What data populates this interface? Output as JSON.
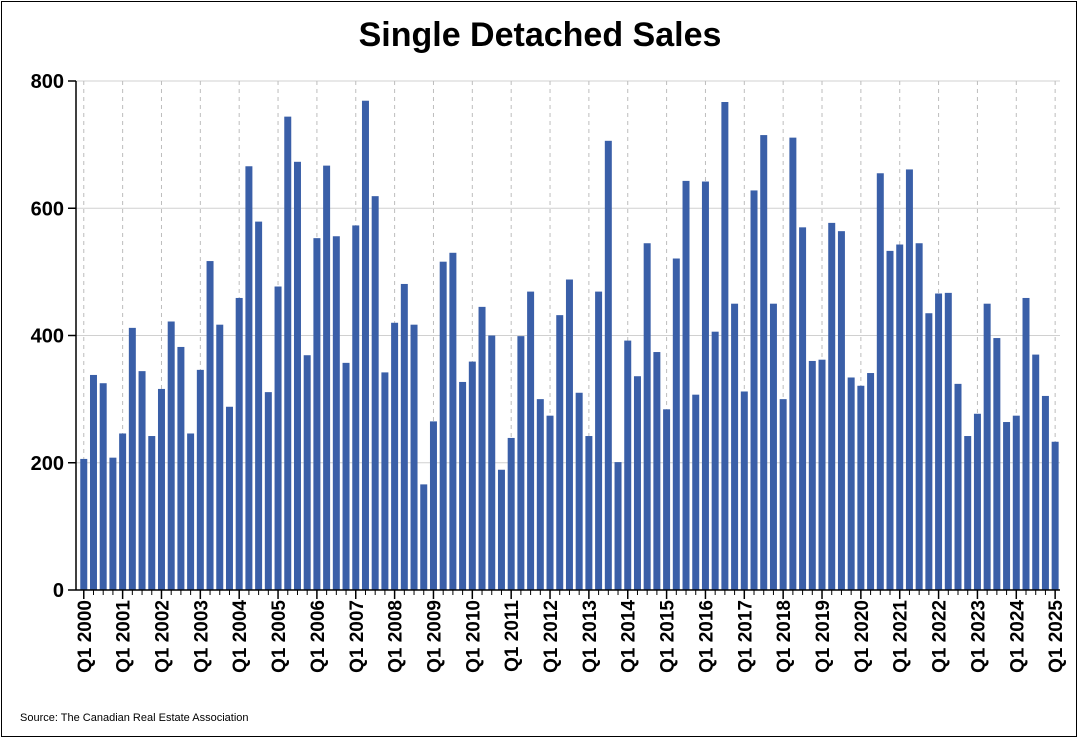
{
  "source": "Source: The Canadian Real Estate Association",
  "colors": {
    "bar": "#3a5fa8",
    "grid": "#d0d0d0",
    "axis": "#000000"
  },
  "chart_data": {
    "type": "bar",
    "title": "Single Detached Sales",
    "xlabel": "",
    "ylabel": "",
    "ylim": [
      0,
      800
    ],
    "yticks": [
      0,
      200,
      400,
      600,
      800
    ],
    "grid": {
      "horizontal": true,
      "vertical": "dashed at each Q1"
    },
    "legend": "none",
    "start": {
      "year": 2000,
      "quarter": 1
    },
    "tick_labels": [
      "Q1 2000",
      "Q1 2001",
      "Q1 2002",
      "Q1 2003",
      "Q1 2004",
      "Q1 2005",
      "Q1 2006",
      "Q1 2007",
      "Q1 2008",
      "Q1 2009",
      "Q1 2010",
      "Q1 2011",
      "Q1 2012",
      "Q1 2013",
      "Q1 2014",
      "Q1 2015",
      "Q1 2016",
      "Q1 2017",
      "Q1 2018",
      "Q1 2019",
      "Q1 2020",
      "Q1 2021",
      "Q1 2022",
      "Q1 2023",
      "Q1 2024",
      "Q1 2025"
    ],
    "values": [
      206,
      338,
      325,
      208,
      246,
      412,
      344,
      242,
      316,
      422,
      382,
      246,
      346,
      517,
      417,
      288,
      459,
      666,
      579,
      311,
      477,
      744,
      673,
      369,
      553,
      667,
      556,
      357,
      573,
      769,
      619,
      342,
      420,
      481,
      417,
      166,
      265,
      516,
      530,
      327,
      359,
      445,
      400,
      189,
      239,
      399,
      469,
      300,
      274,
      432,
      488,
      310,
      242,
      469,
      706,
      201,
      392,
      336,
      545,
      374,
      284,
      521,
      643,
      307,
      642,
      406,
      767,
      450,
      312,
      628,
      715,
      450,
      300,
      711,
      570,
      360,
      362,
      577,
      564,
      334,
      321,
      341,
      655,
      533,
      543,
      661,
      545,
      435,
      466,
      467,
      324,
      242,
      277,
      450,
      396,
      264,
      274,
      459,
      370,
      305,
      233
    ]
  }
}
